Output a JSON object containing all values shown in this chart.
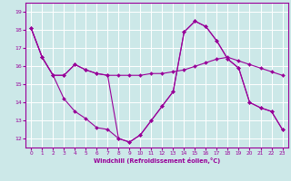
{
  "title": "",
  "xlabel": "Windchill (Refroidissement éolien,°C)",
  "bg_color": "#cce8e8",
  "grid_color": "#ffffff",
  "line_color": "#990099",
  "xlim": [
    -0.5,
    23.5
  ],
  "ylim": [
    11.5,
    19.5
  ],
  "yticks": [
    12,
    13,
    14,
    15,
    16,
    17,
    18,
    19
  ],
  "xticks": [
    0,
    1,
    2,
    3,
    4,
    5,
    6,
    7,
    8,
    9,
    10,
    11,
    12,
    13,
    14,
    15,
    16,
    17,
    18,
    19,
    20,
    21,
    22,
    23
  ],
  "series": {
    "line1": [
      18.1,
      16.5,
      15.5,
      15.5,
      16.1,
      15.8,
      15.6,
      15.5,
      15.5,
      15.5,
      15.5,
      15.6,
      15.6,
      15.7,
      15.8,
      16.0,
      16.2,
      16.4,
      16.5,
      16.3,
      16.1,
      15.9,
      15.7,
      15.5
    ],
    "line2": [
      18.1,
      16.5,
      15.5,
      14.2,
      13.5,
      13.1,
      12.6,
      12.5,
      12.0,
      11.8,
      12.2,
      13.0,
      13.8,
      14.6,
      17.9,
      18.5,
      18.2,
      17.4,
      16.4,
      15.9,
      14.0,
      13.7,
      13.5,
      12.5
    ],
    "line3": [
      18.1,
      16.5,
      15.5,
      15.5,
      16.1,
      15.8,
      15.6,
      15.5,
      12.0,
      11.8,
      12.2,
      13.0,
      13.8,
      14.6,
      17.9,
      18.5,
      18.2,
      17.4,
      16.4,
      15.9,
      14.0,
      13.7,
      13.5,
      12.5
    ]
  }
}
